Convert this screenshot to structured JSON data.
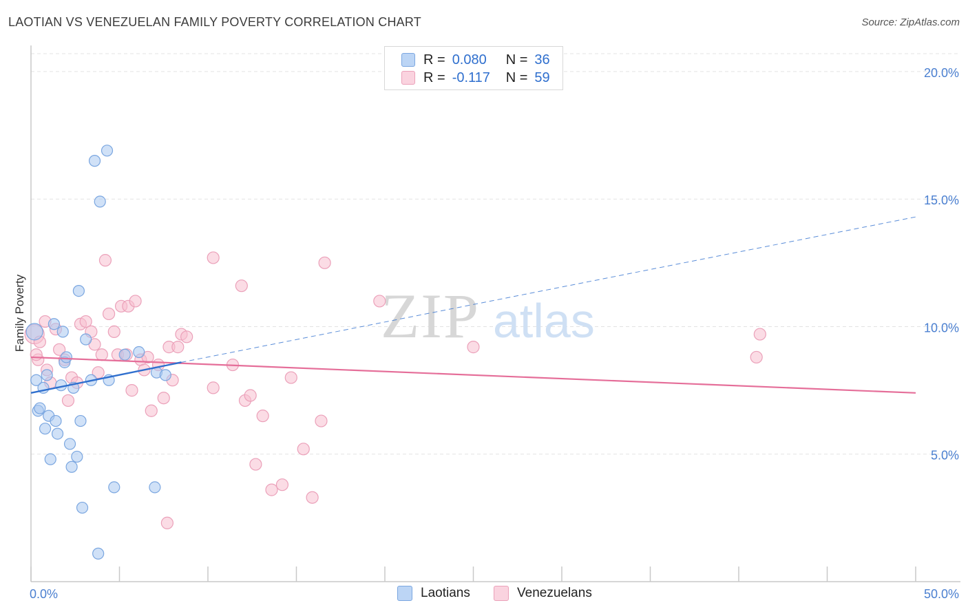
{
  "title": "LAOTIAN VS VENEZUELAN FAMILY POVERTY CORRELATION CHART",
  "source": "Source: ZipAtlas.com",
  "watermark": {
    "zip": "ZIP",
    "atlas": "atlas"
  },
  "colors": {
    "laotian_fill": "#a9c8f0",
    "laotian_stroke": "#7aa6e0",
    "laotian_line": "#2f6fce",
    "venezuelan_fill": "#f7bfd0",
    "venezuelan_stroke": "#eba0b9",
    "venezuelan_line": "#e56e99",
    "grid": "#e3e3e3",
    "tick_label": "#4a7fd0"
  },
  "legend": {
    "rows": [
      {
        "r_label": "R =",
        "r_value": "0.080",
        "n_label": "N =",
        "n_value": "36"
      },
      {
        "r_label": "R =",
        "r_value": "-0.117",
        "n_label": "N =",
        "n_value": "59"
      }
    ]
  },
  "bottom_legend": [
    "Laotians",
    "Venezuelans"
  ],
  "chart_data": {
    "type": "scatter",
    "title": "LAOTIAN VS VENEZUELAN FAMILY POVERTY CORRELATION CHART",
    "xlabel": "",
    "ylabel": "Family Poverty",
    "xlim": [
      0,
      50
    ],
    "ylim": [
      0,
      20.7
    ],
    "x_tick_labels": [
      "0.0%",
      "50.0%"
    ],
    "y_ticks": [
      5,
      10,
      15,
      20
    ],
    "y_tick_labels": [
      "5.0%",
      "10.0%",
      "15.0%",
      "20.0%"
    ],
    "grid": true,
    "legend_position": "top-center",
    "series": [
      {
        "name": "Laotians",
        "r": 0.08,
        "n": 36,
        "trend": {
          "x": [
            0,
            8.5
          ],
          "y": [
            7.4,
            8.6
          ],
          "dashed_extension": {
            "x": [
              8.5,
              50
            ],
            "y": [
              8.6,
              14.3
            ]
          }
        },
        "points": [
          [
            0.2,
            9.8
          ],
          [
            0.3,
            7.9
          ],
          [
            0.4,
            6.7
          ],
          [
            0.5,
            6.8
          ],
          [
            0.7,
            7.6
          ],
          [
            0.8,
            6.0
          ],
          [
            0.9,
            8.1
          ],
          [
            1.0,
            6.5
          ],
          [
            1.1,
            4.8
          ],
          [
            1.3,
            10.1
          ],
          [
            1.4,
            6.3
          ],
          [
            1.5,
            5.8
          ],
          [
            1.7,
            7.7
          ],
          [
            1.8,
            9.8
          ],
          [
            1.9,
            8.6
          ],
          [
            2.0,
            8.8
          ],
          [
            2.2,
            5.4
          ],
          [
            2.3,
            4.5
          ],
          [
            2.4,
            7.6
          ],
          [
            2.6,
            4.9
          ],
          [
            2.7,
            11.4
          ],
          [
            2.8,
            6.3
          ],
          [
            2.9,
            2.9
          ],
          [
            3.1,
            9.5
          ],
          [
            3.4,
            7.9
          ],
          [
            3.6,
            16.5
          ],
          [
            3.8,
            1.1
          ],
          [
            3.9,
            14.9
          ],
          [
            4.3,
            16.9
          ],
          [
            4.4,
            7.9
          ],
          [
            4.7,
            3.7
          ],
          [
            5.3,
            8.9
          ],
          [
            6.1,
            9.0
          ],
          [
            7.0,
            3.7
          ],
          [
            7.1,
            8.2
          ],
          [
            7.6,
            8.1
          ]
        ]
      },
      {
        "name": "Venezuelans",
        "r": -0.117,
        "n": 59,
        "trend": {
          "x": [
            0,
            50
          ],
          "y": [
            8.8,
            7.4
          ]
        },
        "points": [
          [
            0.2,
            9.7
          ],
          [
            0.4,
            8.7
          ],
          [
            0.5,
            9.4
          ],
          [
            0.8,
            10.2
          ],
          [
            0.9,
            8.3
          ],
          [
            1.1,
            7.8
          ],
          [
            1.4,
            9.9
          ],
          [
            1.6,
            9.1
          ],
          [
            1.9,
            8.7
          ],
          [
            2.1,
            7.1
          ],
          [
            2.3,
            8.0
          ],
          [
            2.6,
            7.8
          ],
          [
            2.8,
            10.1
          ],
          [
            3.1,
            10.2
          ],
          [
            3.4,
            9.8
          ],
          [
            3.6,
            9.3
          ],
          [
            3.8,
            8.2
          ],
          [
            4.0,
            8.9
          ],
          [
            4.2,
            12.6
          ],
          [
            4.4,
            10.5
          ],
          [
            4.7,
            9.8
          ],
          [
            4.9,
            8.9
          ],
          [
            5.1,
            10.8
          ],
          [
            5.4,
            8.9
          ],
          [
            5.5,
            10.8
          ],
          [
            5.7,
            7.5
          ],
          [
            5.9,
            11.0
          ],
          [
            6.2,
            8.7
          ],
          [
            6.4,
            8.3
          ],
          [
            6.6,
            8.8
          ],
          [
            6.8,
            6.7
          ],
          [
            7.2,
            8.5
          ],
          [
            7.5,
            7.2
          ],
          [
            7.7,
            2.3
          ],
          [
            7.8,
            9.2
          ],
          [
            8.0,
            7.9
          ],
          [
            8.3,
            9.2
          ],
          [
            8.5,
            9.7
          ],
          [
            8.8,
            9.6
          ],
          [
            10.3,
            12.7
          ],
          [
            10.3,
            7.6
          ],
          [
            11.4,
            8.5
          ],
          [
            11.9,
            11.6
          ],
          [
            12.1,
            7.1
          ],
          [
            12.4,
            7.3
          ],
          [
            12.7,
            4.6
          ],
          [
            13.1,
            6.5
          ],
          [
            13.6,
            3.6
          ],
          [
            14.2,
            3.8
          ],
          [
            14.7,
            8.0
          ],
          [
            15.4,
            5.2
          ],
          [
            15.9,
            3.3
          ],
          [
            16.4,
            6.3
          ],
          [
            16.6,
            12.5
          ],
          [
            19.7,
            11.0
          ],
          [
            25.0,
            9.2
          ],
          [
            41.0,
            8.8
          ],
          [
            41.2,
            9.7
          ],
          [
            0.3,
            8.9
          ]
        ]
      }
    ]
  }
}
